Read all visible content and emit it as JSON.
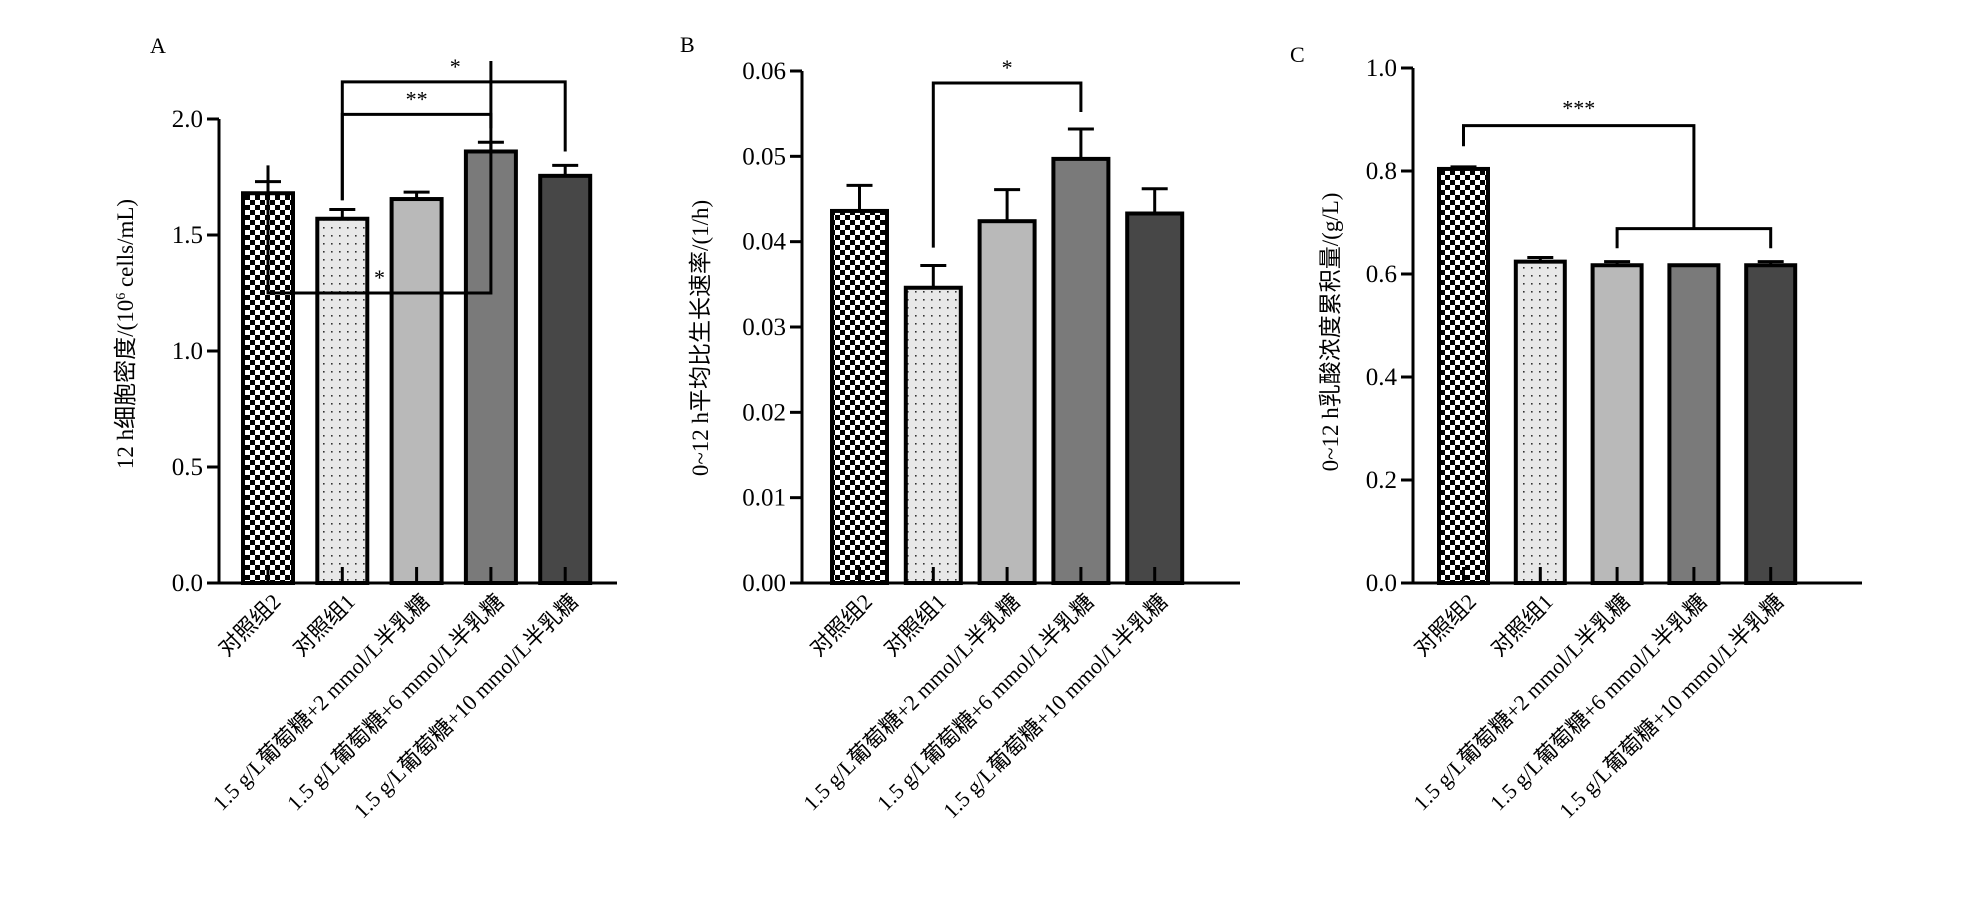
{
  "categories": [
    "对照组2",
    "对照组1",
    "1.5 g/L葡萄糖+2 mmol/L半乳糖",
    "1.5 g/L葡萄糖+6 mmol/L半乳糖",
    "1.5 g/L葡萄糖+10 mmol/L半乳糖"
  ],
  "fills": [
    "checker",
    "dots",
    "#b9b9b9",
    "#7a7a7a",
    "#474747"
  ],
  "chart_data": [
    {
      "type": "bar",
      "panel": "A",
      "title": "",
      "xlabel": "",
      "ylabel": "12 h细胞密度/(10⁶ cells/mL)",
      "ylabel_parts": {
        "pre": "12 h细胞密度/(10",
        "sup": "6",
        "post": " cells/mL)"
      },
      "ylim": [
        0,
        2.0
      ],
      "yticks": [
        "0.0",
        "0.5",
        "1.0",
        "1.5",
        "2.0"
      ],
      "ytick_values": [
        0,
        0.5,
        1.0,
        1.5,
        2.0
      ],
      "categories": [
        "对照组2",
        "对照组1",
        "1.5 g/L葡萄糖+2 mmol/L半乳糖",
        "1.5 g/L葡萄糖+6 mmol/L半乳糖",
        "1.5 g/L葡萄糖+10 mmol/L半乳糖"
      ],
      "values": [
        1.68,
        1.57,
        1.655,
        1.86,
        1.755
      ],
      "errors": [
        0.05,
        0.04,
        0.03,
        0.04,
        0.045
      ],
      "significance": [
        {
          "from": 0,
          "to": 3,
          "label": "*",
          "level": 1.25,
          "from_drop": 1.8,
          "to_drop": 2.25
        },
        {
          "from": 1,
          "to": 4,
          "label": "*",
          "level": 2.16,
          "from_drop": 1.65,
          "to_drop": 1.86
        },
        {
          "from": 1,
          "to": 3,
          "label": "**",
          "level": 2.02,
          "from_drop": 1.65,
          "to_drop": 1.96
        }
      ]
    },
    {
      "type": "bar",
      "panel": "B",
      "title": "",
      "xlabel": "",
      "ylabel": "0~12 h平均比生长速率/(1/h)",
      "ylim": [
        0,
        0.06
      ],
      "yticks": [
        "0.00",
        "0.01",
        "0.02",
        "0.03",
        "0.04",
        "0.05",
        "0.06"
      ],
      "ytick_values": [
        0,
        0.01,
        0.02,
        0.03,
        0.04,
        0.05,
        0.06
      ],
      "categories": [
        "对照组2",
        "对照组1",
        "1.5 g/L葡萄糖+2 mmol/L半乳糖",
        "1.5 g/L葡萄糖+6 mmol/L半乳糖",
        "1.5 g/L葡萄糖+10 mmol/L半乳糖"
      ],
      "values": [
        0.0436,
        0.0346,
        0.0424,
        0.0497,
        0.0433
      ],
      "errors": [
        0.003,
        0.0026,
        0.0037,
        0.0035,
        0.0029
      ],
      "significance": [
        {
          "from": 1,
          "to": 3,
          "label": "*",
          "level": 0.0586,
          "from_drop": 0.0393,
          "to_drop": 0.0552
        }
      ]
    },
    {
      "type": "bar",
      "panel": "C",
      "title": "",
      "xlabel": "",
      "ylabel": "0~12 h乳酸浓度累积量/(g/L)",
      "ylim": [
        0,
        1.0
      ],
      "yticks": [
        "0.0",
        "0.2",
        "0.4",
        "0.6",
        "0.8",
        "1.0"
      ],
      "ytick_values": [
        0,
        0.2,
        0.4,
        0.6,
        0.8,
        1.0
      ],
      "categories": [
        "对照组2",
        "对照组1",
        "1.5 g/L葡萄糖+2 mmol/L半乳糖",
        "1.5 g/L葡萄糖+6 mmol/L半乳糖",
        "1.5 g/L葡萄糖+10 mmol/L半乳糖"
      ],
      "values": [
        0.804,
        0.624,
        0.617,
        0.617,
        0.617
      ],
      "errors": [
        0.004,
        0.008,
        0.007,
        0.0,
        0.007
      ],
      "significance": [
        {
          "from": 0,
          "to": "group",
          "label": "***",
          "level": 0.888,
          "from_drop": 0.848,
          "group_level": 0.688,
          "group_from": 2,
          "group_to": 4,
          "group_drop": 0.65
        }
      ]
    }
  ],
  "panel_letters": [
    "A",
    "B",
    "C"
  ]
}
